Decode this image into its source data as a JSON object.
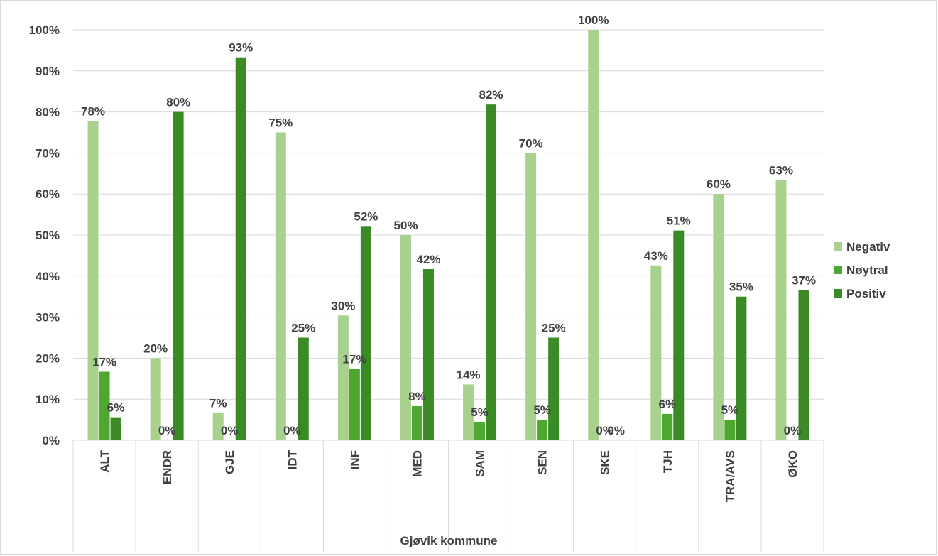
{
  "chart_data": {
    "type": "bar",
    "title": "",
    "xlabel": "Gjøvik kommune",
    "ylabel": "",
    "ylim": [
      0,
      100
    ],
    "yticks": [
      "0%",
      "10%",
      "20%",
      "30%",
      "40%",
      "50%",
      "60%",
      "70%",
      "80%",
      "90%",
      "100%"
    ],
    "categories": [
      "ALT",
      "ENDR",
      "GJE",
      "IDT",
      "INF",
      "MED",
      "SAM",
      "SEN",
      "SKE",
      "TJH",
      "TRA/AVS",
      "ØKO"
    ],
    "series": [
      {
        "name": "Negativ",
        "color": "#a9d18e",
        "values": [
          77.8,
          20,
          6.7,
          75,
          30.4,
          50,
          13.6,
          70,
          100,
          42.6,
          60,
          63.4
        ],
        "labels": [
          "78%",
          "20%",
          "7%",
          "75%",
          "30%",
          "50%",
          "14%",
          "70%",
          "100%",
          "43%",
          "60%",
          "63%"
        ]
      },
      {
        "name": "Nøytral",
        "color": "#4ea72e",
        "values": [
          16.7,
          0,
          0,
          0,
          17.4,
          8.3,
          4.5,
          5,
          0,
          6.4,
          5,
          0
        ],
        "labels": [
          "17%",
          "0%",
          "0%",
          "0%",
          "17%",
          "8%",
          "5%",
          "5%",
          "0%",
          "6%",
          "5%",
          "0%"
        ]
      },
      {
        "name": "Positiv",
        "color": "#3a8a26",
        "values": [
          5.6,
          80,
          93.3,
          25,
          52.2,
          41.7,
          81.8,
          25,
          0,
          51.1,
          35,
          36.6
        ],
        "labels": [
          "6%",
          "80%",
          "93%",
          "25%",
          "52%",
          "42%",
          "82%",
          "25%",
          "0%",
          "51%",
          "35%",
          "37%"
        ]
      }
    ],
    "gridlines": true,
    "legend_position": "right"
  }
}
